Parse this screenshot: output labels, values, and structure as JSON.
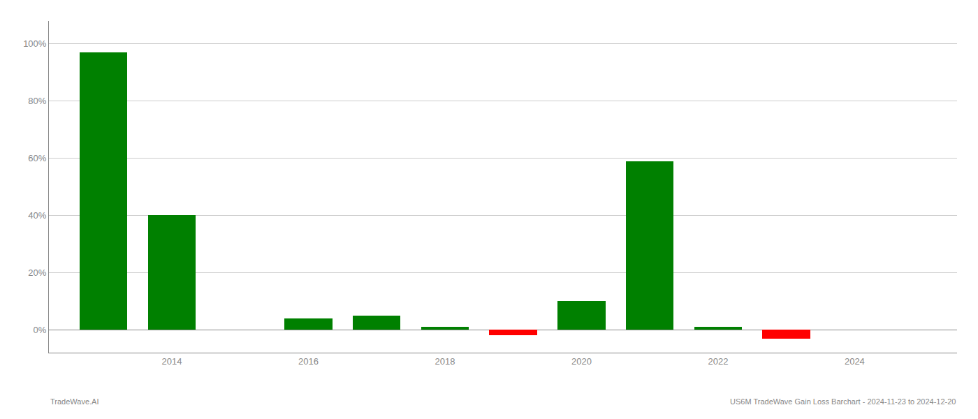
{
  "chart_data": {
    "type": "bar",
    "x": [
      2013,
      2014,
      2015,
      2016,
      2017,
      2018,
      2019,
      2020,
      2021,
      2022,
      2023,
      2024
    ],
    "values": [
      0.97,
      0.4,
      0.0,
      0.04,
      0.05,
      0.01,
      -0.02,
      0.1,
      0.59,
      0.01,
      -0.03,
      0.0
    ],
    "colors": [
      "#008000",
      "#008000",
      "#008000",
      "#008000",
      "#008000",
      "#008000",
      "#ff0000",
      "#008000",
      "#008000",
      "#008000",
      "#ff0000",
      "#008000"
    ],
    "ylim": [
      -0.08,
      1.08
    ],
    "yticks": [
      {
        "value": 0.0,
        "label": "0%"
      },
      {
        "value": 0.2,
        "label": "20%"
      },
      {
        "value": 0.4,
        "label": "40%"
      },
      {
        "value": 0.6,
        "label": "60%"
      },
      {
        "value": 0.8,
        "label": "80%"
      },
      {
        "value": 1.0,
        "label": "100%"
      }
    ],
    "xlim": [
      2012.2,
      2025.5
    ],
    "xticks": [
      2014,
      2016,
      2018,
      2020,
      2022,
      2024
    ],
    "grid": "y",
    "annotations": [
      "TradeWave.AI",
      "US6M TradeWave Gain Loss Barchart - 2024-11-23 to 2024-12-20"
    ]
  }
}
